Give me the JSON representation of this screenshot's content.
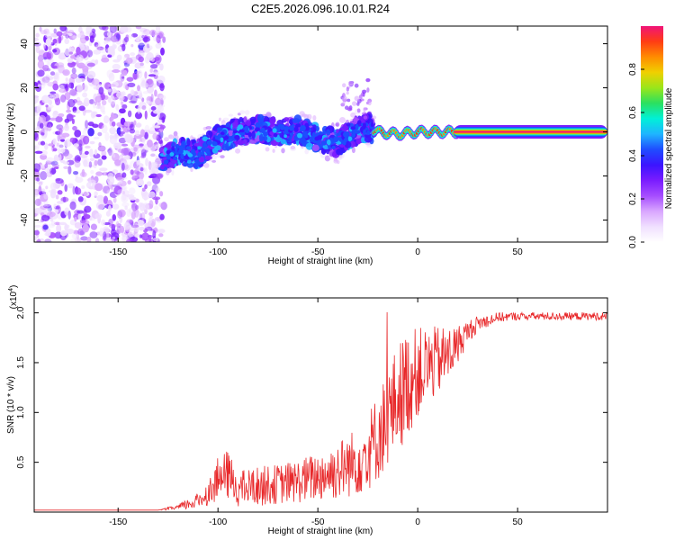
{
  "title": "C2E5.2026.096.10.01.R24",
  "colors": {
    "signal_line": "#e8282a",
    "frame": "#000000",
    "colormap": [
      "#ffffff",
      "#f0e0ff",
      "#d9a6ff",
      "#a64dff",
      "#7a1cff",
      "#3b14ff",
      "#1f4dff",
      "#1fb4ff",
      "#00f0d8",
      "#2ae060",
      "#9ae61a",
      "#f0d000",
      "#ff8c00",
      "#ff3c14",
      "#f01478"
    ]
  },
  "chart_data": [
    {
      "type": "heatmap",
      "xlabel": "Height of straight line (km)",
      "ylabel": "Frequency (Hz)",
      "xlim": [
        -192,
        95
      ],
      "ylim": [
        -50,
        48
      ],
      "xticks": [
        -150,
        -100,
        -50,
        0,
        50
      ],
      "yticks": [
        -40,
        -20,
        0,
        20,
        40
      ],
      "grid": false,
      "ridge": {
        "x": [
          -128,
          -120,
          -110,
          -100,
          -90,
          -80,
          -70,
          -60,
          -50,
          -40,
          -30,
          -25,
          -20,
          -10,
          0,
          10,
          20,
          50,
          95
        ],
        "y": [
          -12,
          -9,
          -10,
          -3,
          0,
          1,
          0,
          1,
          -3,
          -5,
          1,
          2,
          0,
          -1,
          0,
          0,
          0,
          0,
          0
        ]
      },
      "colorbar": {
        "label": "Normalized spectral amplitude",
        "range": [
          0,
          1
        ],
        "ticks": [
          "0.0",
          "0.2",
          "0.4",
          "0.6",
          "0.8"
        ]
      }
    },
    {
      "type": "line",
      "xlabel": "Height of straight line (km)",
      "ylabel": "SNR (10 * v/v)",
      "yscale_label": "(x10",
      "yscale_exp": "4",
      "yscale_close": ")",
      "xlim": [
        -192,
        95
      ],
      "ylim": [
        0,
        2.15
      ],
      "xticks": [
        -150,
        -100,
        -50,
        0,
        50
      ],
      "yticks": [
        0.5,
        1.0,
        1.5,
        2.0
      ],
      "ytick_labels": [
        "0.5",
        "1.0",
        "1.5",
        "2.0"
      ],
      "grid": false,
      "series": [
        {
          "envelope_x": [
            -192,
            -130,
            -120,
            -110,
            -105,
            -100,
            -95,
            -90,
            -80,
            -70,
            -60,
            -50,
            -40,
            -30,
            -25,
            -20,
            -15,
            -10,
            -5,
            0,
            5,
            10,
            15,
            20,
            25,
            30,
            40,
            50,
            60,
            70,
            80,
            95
          ],
          "envelope_y": [
            0.02,
            0.02,
            0.05,
            0.12,
            0.2,
            0.35,
            0.4,
            0.25,
            0.28,
            0.3,
            0.33,
            0.38,
            0.45,
            0.55,
            0.65,
            0.8,
            1.0,
            1.2,
            1.35,
            1.45,
            1.5,
            1.55,
            1.6,
            1.7,
            1.82,
            1.9,
            1.96,
            1.97,
            1.97,
            1.97,
            1.97,
            1.97
          ],
          "spread_y": [
            0,
            0,
            0.03,
            0.08,
            0.12,
            0.22,
            0.25,
            0.18,
            0.2,
            0.2,
            0.22,
            0.25,
            0.3,
            0.35,
            0.4,
            0.45,
            0.5,
            0.55,
            0.55,
            0.45,
            0.4,
            0.35,
            0.3,
            0.2,
            0.12,
            0.08,
            0.05,
            0.04,
            0.04,
            0.04,
            0.04,
            0.04
          ]
        }
      ]
    }
  ]
}
